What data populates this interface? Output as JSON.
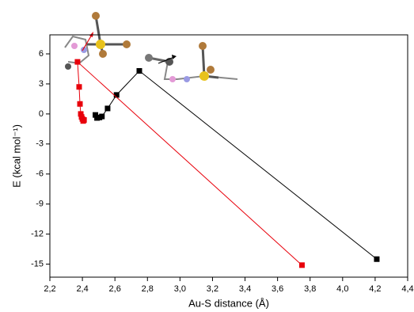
{
  "chart_data": {
    "type": "line",
    "x_label": "Au-S distance (Å)",
    "y_label": "E (kcal mol⁻¹)",
    "xlim": [
      2.2,
      4.4
    ],
    "ylim": [
      -16.3,
      7.9
    ],
    "xticks": [
      {
        "value": 2.2,
        "label": "2,2"
      },
      {
        "value": 2.4,
        "label": "2,4"
      },
      {
        "value": 2.6,
        "label": "2,6"
      },
      {
        "value": 2.8,
        "label": "2,8"
      },
      {
        "value": 3.0,
        "label": "3,0"
      },
      {
        "value": 3.2,
        "label": "3,2"
      },
      {
        "value": 3.4,
        "label": "3,4"
      },
      {
        "value": 3.6,
        "label": "3,6"
      },
      {
        "value": 3.8,
        "label": "3,8"
      },
      {
        "value": 4.0,
        "label": "4,0"
      },
      {
        "value": 4.2,
        "label": "4,2"
      },
      {
        "value": 4.4,
        "label": "4,4"
      }
    ],
    "yticks": [
      -15,
      -12,
      -9,
      -6,
      -3,
      0,
      3,
      6
    ],
    "grid": false,
    "series": [
      {
        "color": "#000000",
        "x": [
          4.21,
          2.75,
          2.61,
          2.555,
          2.52,
          2.505,
          2.49,
          2.48
        ],
        "values": [
          -14.5,
          4.3,
          1.9,
          0.55,
          -0.25,
          -0.35,
          -0.4,
          -0.1
        ]
      },
      {
        "color": "#e8000b",
        "x": [
          3.75,
          2.37,
          2.38,
          2.385,
          2.39,
          2.395,
          2.4,
          2.405,
          2.41
        ],
        "values": [
          -15.1,
          5.2,
          2.7,
          1.0,
          0.0,
          -0.3,
          -0.5,
          -0.7,
          -0.6
        ]
      }
    ]
  }
}
